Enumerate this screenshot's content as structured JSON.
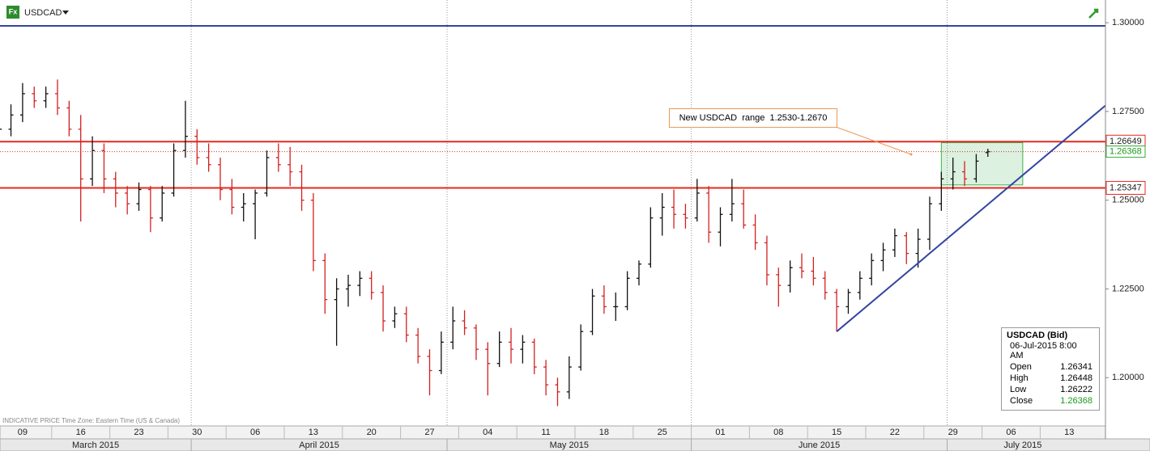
{
  "chart_data": {
    "type": "ohlc",
    "title": "USDCAD",
    "footer": "INDICATIVE PRICE   Time Zone: Eastern Time (US & Canada)",
    "categories": [
      "09",
      null,
      null,
      null,
      null,
      "16",
      null,
      null,
      null,
      null,
      "23",
      null,
      null,
      null,
      null,
      "30",
      null,
      null,
      null,
      null,
      "06",
      null,
      null,
      null,
      null,
      "13",
      null,
      null,
      null,
      null,
      "20",
      null,
      null,
      null,
      null,
      "27",
      null,
      null,
      null,
      null,
      "04",
      null,
      null,
      null,
      null,
      "11",
      null,
      null,
      null,
      null,
      "18",
      null,
      null,
      null,
      null,
      "25",
      null,
      null,
      null,
      null,
      "01",
      null,
      null,
      null,
      null,
      "08",
      null,
      null,
      null,
      null,
      "15",
      null,
      null,
      null,
      null,
      "22",
      null,
      null,
      null,
      null,
      "29",
      null,
      null,
      null,
      null,
      "06",
      null,
      null,
      null,
      null,
      "13",
      null,
      null,
      null,
      null
    ],
    "months": [
      "March 2015",
      "April 2015",
      "May 2015",
      "June 2015",
      "July 2015"
    ],
    "open": [
      1.265,
      1.27,
      1.274,
      1.28,
      1.278,
      1.28,
      1.276,
      1.27,
      1.256,
      1.264,
      1.256,
      1.252,
      1.249,
      1.253,
      1.245,
      1.252,
      1.264,
      1.268,
      1.262,
      1.26,
      1.253,
      1.248,
      1.249,
      1.252,
      1.262,
      1.26,
      1.258,
      1.25,
      1.233,
      1.222,
      1.225,
      1.226,
      1.228,
      1.224,
      1.216,
      1.218,
      1.212,
      1.206,
      1.202,
      1.21,
      1.216,
      1.214,
      1.208,
      1.204,
      1.21,
      1.208,
      1.21,
      1.203,
      1.198,
      1.196,
      1.203,
      1.213,
      1.223,
      1.22,
      1.22,
      1.228,
      1.232,
      1.245,
      1.248,
      1.246,
      1.245,
      1.252,
      1.241,
      1.246,
      1.249,
      1.243,
      1.238,
      1.229,
      1.226,
      1.231,
      1.23,
      1.228,
      1.224,
      1.22,
      1.224,
      1.228,
      1.233,
      1.236,
      1.24,
      1.235,
      1.239,
      1.249,
      1.256,
      1.258,
      1.256,
      1.26341,
      null,
      null,
      null,
      null,
      null,
      null,
      null,
      null,
      null
    ],
    "high": [
      1.272,
      1.277,
      1.283,
      1.282,
      1.282,
      1.284,
      1.278,
      1.274,
      1.268,
      1.266,
      1.258,
      1.254,
      1.255,
      1.254,
      1.254,
      1.266,
      1.278,
      1.27,
      1.266,
      1.262,
      1.256,
      1.252,
      1.253,
      1.264,
      1.266,
      1.265,
      1.26,
      1.252,
      1.235,
      1.228,
      1.229,
      1.23,
      1.23,
      1.226,
      1.22,
      1.22,
      1.214,
      1.208,
      1.213,
      1.22,
      1.219,
      1.215,
      1.21,
      1.213,
      1.214,
      1.212,
      1.211,
      1.205,
      1.2,
      1.206,
      1.215,
      1.225,
      1.226,
      1.224,
      1.23,
      1.233,
      1.248,
      1.252,
      1.253,
      1.249,
      1.256,
      1.254,
      1.248,
      1.256,
      1.253,
      1.246,
      1.24,
      1.231,
      1.233,
      1.235,
      1.234,
      1.23,
      1.225,
      1.225,
      1.23,
      1.235,
      1.238,
      1.242,
      1.241,
      1.242,
      1.251,
      1.258,
      1.262,
      1.261,
      1.263,
      1.26448,
      null,
      null,
      null,
      null,
      null,
      null,
      null,
      null,
      null
    ],
    "low": [
      1.262,
      1.268,
      1.272,
      1.276,
      1.276,
      1.274,
      1.268,
      1.244,
      1.254,
      1.252,
      1.248,
      1.246,
      1.247,
      1.241,
      1.244,
      1.251,
      1.262,
      1.26,
      1.258,
      1.25,
      1.246,
      1.244,
      1.239,
      1.251,
      1.258,
      1.254,
      1.247,
      1.23,
      1.218,
      1.209,
      1.22,
      1.223,
      1.222,
      1.213,
      1.214,
      1.21,
      1.204,
      1.195,
      1.201,
      1.208,
      1.212,
      1.205,
      1.195,
      1.203,
      1.204,
      1.204,
      1.201,
      1.195,
      1.192,
      1.194,
      1.202,
      1.212,
      1.218,
      1.216,
      1.219,
      1.226,
      1.231,
      1.24,
      1.242,
      1.242,
      1.244,
      1.238,
      1.237,
      1.244,
      1.242,
      1.236,
      1.226,
      1.22,
      1.224,
      1.228,
      1.226,
      1.222,
      1.213,
      1.218,
      1.222,
      1.226,
      1.23,
      1.234,
      1.232,
      1.231,
      1.236,
      1.247,
      1.253,
      1.254,
      1.255,
      1.26222,
      null,
      null,
      null,
      null,
      null,
      null,
      null,
      null,
      null
    ],
    "close": [
      1.27,
      1.274,
      1.28,
      1.278,
      1.28,
      1.276,
      1.27,
      1.256,
      1.264,
      1.256,
      1.252,
      1.249,
      1.253,
      1.245,
      1.252,
      1.264,
      1.268,
      1.262,
      1.26,
      1.253,
      1.248,
      1.249,
      1.252,
      1.262,
      1.26,
      1.258,
      1.25,
      1.233,
      1.222,
      1.225,
      1.226,
      1.228,
      1.224,
      1.216,
      1.218,
      1.212,
      1.206,
      1.202,
      1.21,
      1.216,
      1.214,
      1.208,
      1.204,
      1.21,
      1.208,
      1.21,
      1.203,
      1.198,
      1.196,
      1.203,
      1.213,
      1.223,
      1.22,
      1.22,
      1.228,
      1.232,
      1.245,
      1.248,
      1.246,
      1.245,
      1.252,
      1.241,
      1.246,
      1.249,
      1.243,
      1.238,
      1.229,
      1.226,
      1.231,
      1.23,
      1.228,
      1.224,
      1.22,
      1.224,
      1.228,
      1.233,
      1.236,
      1.24,
      1.235,
      1.239,
      1.249,
      1.256,
      1.258,
      1.256,
      1.261,
      1.26368,
      null,
      null,
      null,
      null,
      null,
      null,
      null,
      null,
      null
    ],
    "up_color": "#111111",
    "down_color": "#d42020",
    "ylim": [
      1.1864,
      1.3064
    ],
    "yticks": [
      {
        "value": 1.2,
        "label": "1.20000"
      },
      {
        "value": 1.225,
        "label": "1.22500"
      },
      {
        "value": 1.25,
        "label": "1.25000"
      },
      {
        "value": 1.275,
        "label": "1.27500"
      },
      {
        "value": 1.3,
        "label": "1.30000"
      }
    ],
    "levels": [
      {
        "value": 1.26649,
        "label": "1.26649",
        "color": "#e8281e"
      },
      {
        "value": 1.25347,
        "label": "1.25347",
        "color": "#e8281e"
      }
    ],
    "blue_line": {
      "value": 1.2991,
      "color": "#3345a0"
    },
    "trendline": {
      "x": [
        72,
        95.6
      ],
      "y": [
        1.213,
        1.278
      ],
      "color": "#3345a0"
    },
    "range_box": {
      "x": [
        81,
        88
      ],
      "y": [
        1.2543,
        1.2662
      ],
      "color": "#3cb44b"
    },
    "annotation": "New USDCAD  range  1.2530-1.2670",
    "info_box": {
      "title": "USDCAD (Bid)",
      "date": "06-Jul-2015 8:00 AM",
      "rows": [
        [
          "Open",
          "1.26341"
        ],
        [
          "High",
          "1.26448"
        ],
        [
          "Low",
          "1.26222"
        ],
        [
          "Close",
          "1.26368"
        ]
      ]
    }
  }
}
